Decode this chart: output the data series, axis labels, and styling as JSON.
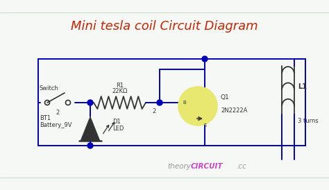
{
  "title": "Mini tesla coil Circuit Diagram",
  "title_color": "#cc2200",
  "title_fontsize": 13,
  "bg_color": "#f5f8f5",
  "wire_color": "#0000bb",
  "component_color": "#333333",
  "junction_color": "#0000bb",
  "watermark_theory": "theory",
  "watermark_circuit": "CIRCUIT",
  "watermark_cc": ".cc",
  "watermark_color1": "#999999",
  "watermark_color2": "#cc44cc",
  "labels": {
    "switch": "Switch",
    "bt1_line1": "BT1",
    "bt1_line2": "Battery_9V",
    "r1_line1": "R1",
    "r1_line2": "22KΩ",
    "d1_line1": "D1",
    "d1_line2": "LED",
    "q1_line1": "Q1",
    "q1_line2": "2N2222A",
    "l1": "L1",
    "turns": "3 turns",
    "num2": "2"
  }
}
